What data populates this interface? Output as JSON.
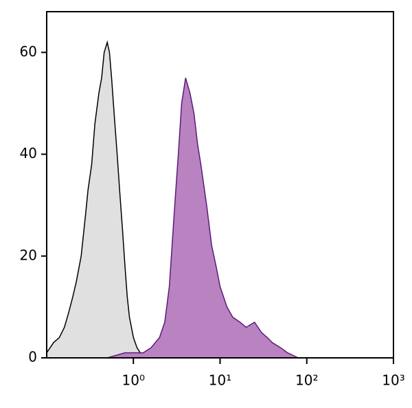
{
  "chart_data": {
    "type": "area",
    "xscale": "log",
    "xlim": [
      0.1,
      1000
    ],
    "ylim": [
      0,
      68
    ],
    "xticks": [
      {
        "value": 1,
        "label": "10⁰"
      },
      {
        "value": 10,
        "label": "10¹"
      },
      {
        "value": 100,
        "label": "10²"
      },
      {
        "value": 1000,
        "label": "10³"
      }
    ],
    "yticks": [
      0,
      20,
      40,
      60
    ],
    "series": [
      {
        "color": "#e0e0e0",
        "line_color": "#000000",
        "x": [
          0.1,
          0.12,
          0.14,
          0.16,
          0.18,
          0.2,
          0.22,
          0.25,
          0.28,
          0.3,
          0.33,
          0.36,
          0.4,
          0.43,
          0.46,
          0.5,
          0.53,
          0.56,
          0.6,
          0.65,
          0.7,
          0.75,
          0.8,
          0.85,
          0.9,
          1.0,
          1.1,
          1.2,
          1.3
        ],
        "values": [
          1,
          3,
          4,
          6,
          9,
          12,
          15,
          20,
          28,
          33,
          38,
          46,
          52,
          55,
          60,
          62,
          60,
          55,
          48,
          40,
          32,
          25,
          18,
          12,
          8,
          4,
          2,
          1,
          0
        ]
      },
      {
        "color": "#b883c0",
        "line_color": "#5a1a7a",
        "x": [
          0.5,
          0.8,
          1,
          1.3,
          1.6,
          2,
          2.3,
          2.6,
          3,
          3.3,
          3.6,
          4,
          4.5,
          5,
          5.5,
          6,
          7,
          8,
          9,
          10,
          12,
          14,
          17,
          20,
          25,
          30,
          35,
          40,
          50,
          60,
          80
        ],
        "values": [
          0,
          1,
          1,
          1,
          2,
          4,
          7,
          14,
          30,
          40,
          50,
          55,
          52,
          48,
          42,
          38,
          30,
          22,
          18,
          14,
          10,
          8,
          7,
          6,
          7,
          5,
          4,
          3,
          2,
          1,
          0
        ]
      }
    ]
  }
}
